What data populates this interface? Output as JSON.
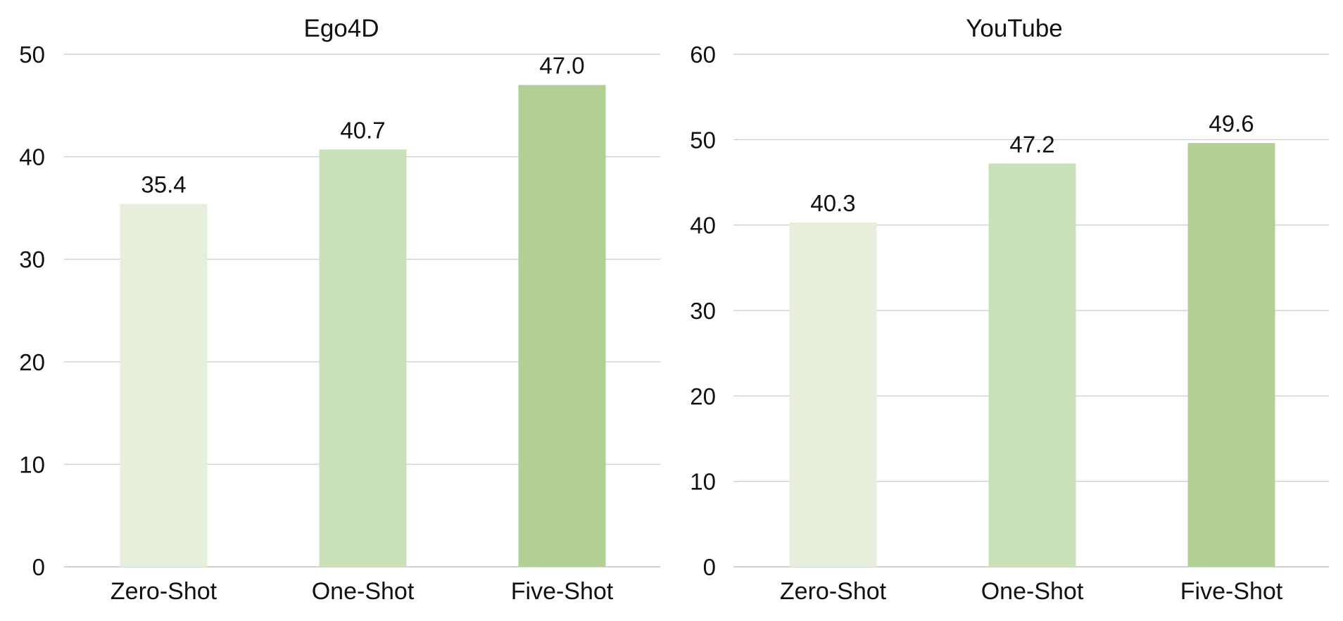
{
  "chart_data": [
    {
      "type": "bar",
      "title": "Ego4D",
      "categories": [
        "Zero-Shot",
        "One-Shot",
        "Five-Shot"
      ],
      "values": [
        35.4,
        40.7,
        47.0
      ],
      "value_labels": [
        "35.4",
        "40.7",
        "47.0"
      ],
      "ylim": [
        0,
        50
      ],
      "yticks": [
        0,
        10,
        20,
        30,
        40,
        50
      ],
      "xlabel": "",
      "ylabel": "",
      "grid": true,
      "legend": "none",
      "colors": [
        "#e5efdc",
        "#cae0b8",
        "#b2cf95"
      ]
    },
    {
      "type": "bar",
      "title": "YouTube",
      "categories": [
        "Zero-Shot",
        "One-Shot",
        "Five-Shot"
      ],
      "values": [
        40.3,
        47.2,
        49.6
      ],
      "value_labels": [
        "40.3",
        "47.2",
        "49.6"
      ],
      "ylim": [
        0,
        60
      ],
      "yticks": [
        0,
        10,
        20,
        30,
        40,
        50,
        60
      ],
      "xlabel": "",
      "ylabel": "",
      "grid": true,
      "legend": "none",
      "colors": [
        "#e5efdc",
        "#cae0b8",
        "#b2cf95"
      ]
    }
  ]
}
